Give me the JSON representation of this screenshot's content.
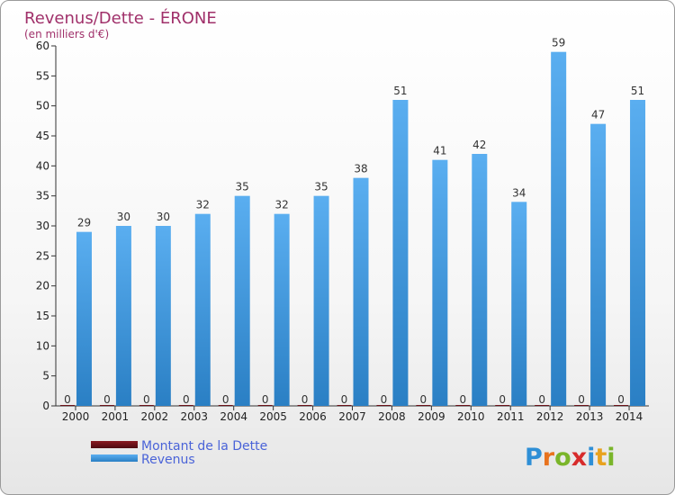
{
  "chart_data": {
    "type": "bar",
    "title": "Revenus/Dette - ÉRONE",
    "subtitle": "(en milliers d'€)",
    "categories": [
      "2000",
      "2001",
      "2002",
      "2003",
      "2004",
      "2005",
      "2006",
      "2007",
      "2008",
      "2009",
      "2010",
      "2011",
      "2012",
      "2013",
      "2014"
    ],
    "series": [
      {
        "name": "Montant de la Dette",
        "color": "#6b0f16",
        "values": [
          0,
          0,
          0,
          0,
          0,
          0,
          0,
          0,
          0,
          0,
          0,
          0,
          0,
          0,
          0
        ]
      },
      {
        "name": "Revenus",
        "color": "#3a95dd",
        "values": [
          29,
          30,
          30,
          32,
          35,
          32,
          35,
          38,
          51,
          41,
          42,
          34,
          59,
          47,
          51
        ]
      }
    ],
    "ylim": [
      0,
      60
    ],
    "yticks": [
      0,
      5,
      10,
      15,
      20,
      25,
      30,
      35,
      40,
      45,
      50,
      55,
      60
    ],
    "grid": false,
    "legend": "bottom-left"
  },
  "logo": {
    "letters": [
      "P",
      "r",
      "o",
      "x",
      "i",
      "t",
      "i"
    ],
    "colors": [
      "#2e8fd6",
      "#e8731e",
      "#7ab52a",
      "#d72b2b",
      "#2e8fd6",
      "#e8a21e",
      "#7ab52a"
    ]
  }
}
